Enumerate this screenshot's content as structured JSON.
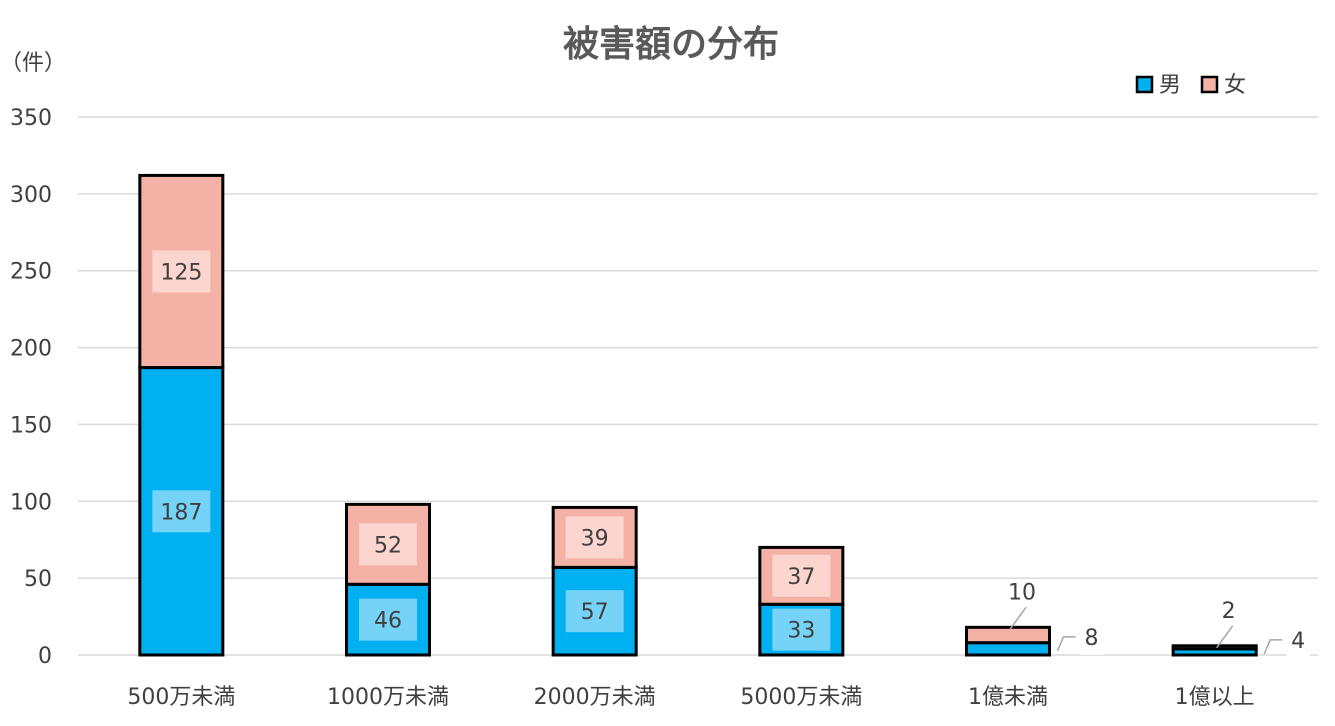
{
  "chart_data": {
    "type": "bar",
    "stacked": true,
    "title": "被害額の分布",
    "y_unit_label": "（件）",
    "xlabel": "",
    "ylabel": "",
    "ylim": [
      0,
      350
    ],
    "y_ticks": [
      0,
      50,
      100,
      150,
      200,
      250,
      300,
      350
    ],
    "grid": true,
    "legend_position": "top-right",
    "categories": [
      "500万未満",
      "1000万未満",
      "2000万未満",
      "5000万未満",
      "1億未満",
      "1億以上"
    ],
    "series": [
      {
        "name": "男",
        "color": "#00B0F0",
        "values": [
          187,
          46,
          57,
          33,
          8,
          4
        ]
      },
      {
        "name": "女",
        "color": "#F4B2A6",
        "values": [
          125,
          52,
          39,
          37,
          10,
          2
        ]
      }
    ]
  }
}
